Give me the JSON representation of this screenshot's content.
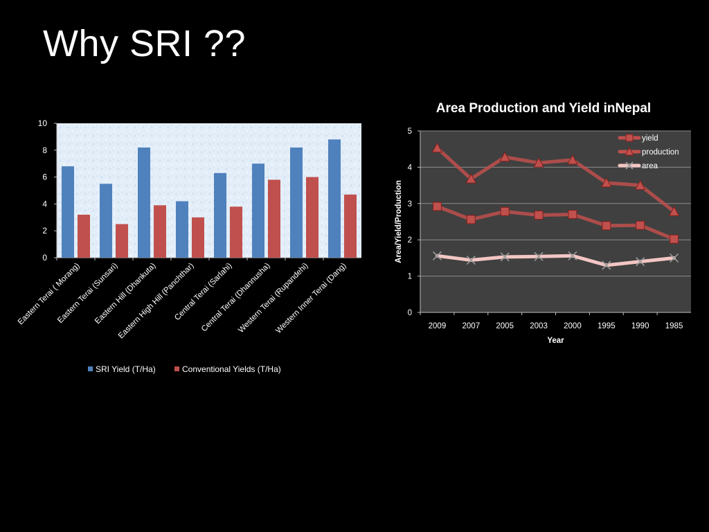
{
  "slide": {
    "title": "Why SRI ??"
  },
  "chart_data": [
    {
      "type": "bar",
      "categories": [
        "Eastern Terai ( Morang)",
        "Eastern Terai (Sunsari)",
        "Eastern Hill (Dhankuta)",
        "Eastern High Hill (Panchthar)",
        "Central Terai (Sarlahi)",
        "Central Terai (Dhannusha)",
        "Western Terai (Rupandehi)",
        "Western Inner Terai (Dang)"
      ],
      "series": [
        {
          "name": "SRI Yield (T/Ha)",
          "values": [
            6.8,
            5.5,
            8.2,
            4.2,
            6.3,
            7.0,
            8.2,
            8.8
          ],
          "color": "#4f81bd"
        },
        {
          "name": "Conventional Yields (T/Ha)",
          "values": [
            3.2,
            2.5,
            3.9,
            3.0,
            3.8,
            5.8,
            6.0,
            4.7
          ],
          "color": "#c0504d"
        }
      ],
      "ylim": [
        0,
        10
      ],
      "yticks": [
        "0",
        "2",
        "4",
        "6",
        "8",
        "10"
      ],
      "grid": false,
      "legend": "bottom"
    },
    {
      "type": "line",
      "title": "Area Production and Yield inNepal",
      "xlabel": "Year",
      "ylabel": "Area/Yield/Production",
      "categories": [
        "2009",
        "2007",
        "2005",
        "2003",
        "2000",
        "1995",
        "1990",
        "1985"
      ],
      "series": [
        {
          "name": "yield",
          "values": [
            2.92,
            2.56,
            2.78,
            2.68,
            2.7,
            2.39,
            2.4,
            2.02
          ],
          "color": "#c0504d",
          "marker": "square"
        },
        {
          "name": "production",
          "values": [
            4.53,
            3.68,
            4.28,
            4.12,
            4.2,
            3.57,
            3.5,
            2.78
          ],
          "color": "#c0504d",
          "marker": "triangle"
        },
        {
          "name": "area",
          "values": [
            1.56,
            1.44,
            1.53,
            1.54,
            1.56,
            1.3,
            1.4,
            1.5
          ],
          "color": "#f2c6c4",
          "marker": "x"
        }
      ],
      "ylim": [
        0,
        5
      ],
      "yticks": [
        "0",
        "1",
        "2",
        "3",
        "4",
        "5"
      ],
      "grid": true,
      "legend": "top-right",
      "background": "#404040"
    }
  ]
}
